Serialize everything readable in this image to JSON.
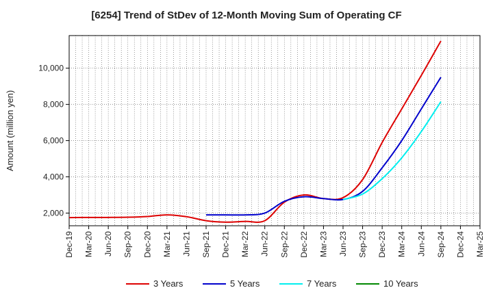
{
  "chart_data": {
    "type": "line",
    "title": "[6254]  Trend of StDev of 12-Month Moving Sum of Operating CF",
    "xlabel": "",
    "ylabel": "Amount (million yen)",
    "x_ticks": [
      "Dec-19",
      "Mar-20",
      "Jun-20",
      "Sep-20",
      "Dec-20",
      "Mar-21",
      "Jun-21",
      "Sep-21",
      "Dec-21",
      "Mar-22",
      "Jun-22",
      "Sep-22",
      "Dec-22",
      "Mar-23",
      "Jun-23",
      "Sep-23",
      "Dec-23",
      "Mar-24",
      "Jun-24",
      "Sep-24",
      "Dec-24",
      "Mar-25"
    ],
    "y_ticks": [
      2000,
      4000,
      6000,
      8000,
      10000
    ],
    "y_tick_labels": [
      "2,000",
      "4,000",
      "6,000",
      "8,000",
      "10,000"
    ],
    "ylim": [
      1300,
      11800
    ],
    "grid": true,
    "legend_position": "bottom",
    "series": [
      {
        "name": "3 Years",
        "color": "#dd0000",
        "x": [
          "Dec-19",
          "Mar-20",
          "Jun-20",
          "Sep-20",
          "Dec-20",
          "Mar-21",
          "Jun-21",
          "Sep-21",
          "Dec-21",
          "Mar-22",
          "Jun-22",
          "Sep-22",
          "Dec-22",
          "Mar-23",
          "Jun-23",
          "Sep-23",
          "Dec-23",
          "Mar-24",
          "Jun-24",
          "Sep-24"
        ],
        "values": [
          1750,
          1760,
          1760,
          1770,
          1810,
          1900,
          1800,
          1580,
          1500,
          1540,
          1580,
          2600,
          3000,
          2800,
          2850,
          3850,
          5900,
          7750,
          9600,
          11500
        ]
      },
      {
        "name": "5 Years",
        "color": "#0000cc",
        "x": [
          "Sep-21",
          "Dec-21",
          "Mar-22",
          "Jun-22",
          "Sep-22",
          "Dec-22",
          "Mar-23",
          "Jun-23",
          "Sep-23",
          "Dec-23",
          "Mar-24",
          "Jun-24",
          "Sep-24"
        ],
        "values": [
          1900,
          1900,
          1900,
          2000,
          2650,
          2900,
          2800,
          2750,
          3200,
          4500,
          6000,
          7750,
          9500
        ]
      },
      {
        "name": "7 Years",
        "color": "#00eeee",
        "x": [
          "Jun-23",
          "Sep-23",
          "Dec-23",
          "Mar-24",
          "Jun-24",
          "Sep-24"
        ],
        "values": [
          2750,
          3050,
          3900,
          5050,
          6500,
          8150
        ]
      },
      {
        "name": "10 Years",
        "color": "#008800",
        "x": [],
        "values": []
      }
    ]
  }
}
